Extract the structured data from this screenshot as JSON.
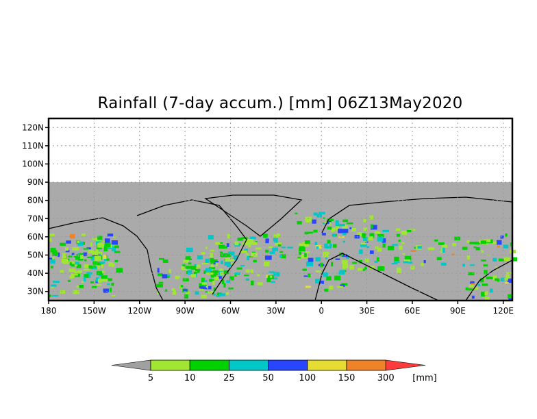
{
  "title": "Rainfall (7-day accum.) [mm] 06Z13May2020",
  "chart_data": {
    "type": "heatmap",
    "title": "Rainfall (7-day accum.) [mm] 06Z13May2020",
    "xlabel": "",
    "ylabel": "",
    "x_range": [
      -180,
      126
    ],
    "y_range": [
      25,
      125
    ],
    "x_ticks": [
      {
        "value": -180,
        "label": "180"
      },
      {
        "value": -150,
        "label": "150W"
      },
      {
        "value": -120,
        "label": "120W"
      },
      {
        "value": -90,
        "label": "90W"
      },
      {
        "value": -60,
        "label": "60W"
      },
      {
        "value": -30,
        "label": "30W"
      },
      {
        "value": 0,
        "label": "0"
      },
      {
        "value": 30,
        "label": "30E"
      },
      {
        "value": 60,
        "label": "60E"
      },
      {
        "value": 90,
        "label": "90E"
      },
      {
        "value": 120,
        "label": "120E"
      }
    ],
    "y_ticks": [
      {
        "value": 120,
        "label": "120N"
      },
      {
        "value": 110,
        "label": "110N"
      },
      {
        "value": 100,
        "label": "100N"
      },
      {
        "value": 90,
        "label": "90N"
      },
      {
        "value": 80,
        "label": "80N"
      },
      {
        "value": 70,
        "label": "70N"
      },
      {
        "value": 60,
        "label": "60N"
      },
      {
        "value": 50,
        "label": "50N"
      },
      {
        "value": 40,
        "label": "40N"
      },
      {
        "value": 30,
        "label": "30N"
      }
    ],
    "grid": true,
    "colorbar": {
      "unit": "[mm]",
      "levels": [
        "5",
        "10",
        "25",
        "50",
        "100",
        "150",
        "300"
      ],
      "colors": [
        "#a0a0a0",
        "#a0e632",
        "#00d200",
        "#00c8c8",
        "#2846ff",
        "#e6dc32",
        "#f08228",
        "#fa3c3c"
      ]
    },
    "background_color": "#aaaaaa"
  }
}
